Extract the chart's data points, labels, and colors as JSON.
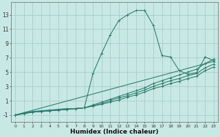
{
  "xlabel": "Humidex (Indice chaleur)",
  "xlim": [
    -0.5,
    23.5
  ],
  "ylim": [
    -2.0,
    14.8
  ],
  "yticks": [
    -1,
    1,
    3,
    5,
    7,
    9,
    11,
    13
  ],
  "xticks": [
    0,
    1,
    2,
    3,
    4,
    5,
    6,
    7,
    8,
    9,
    10,
    11,
    12,
    13,
    14,
    15,
    16,
    17,
    18,
    19,
    20,
    21,
    22,
    23
  ],
  "bg_color": "#c8e8e4",
  "line_color": "#2e7d6e",
  "grid_color": "#a8ccc8",
  "lines": [
    {
      "x": [
        0,
        1,
        2,
        3,
        4,
        5,
        6,
        7,
        8,
        9,
        10,
        11,
        12,
        13,
        14,
        15,
        16,
        17,
        18,
        19,
        20,
        21,
        22,
        23
      ],
      "y": [
        -1.0,
        -0.7,
        -0.5,
        -0.4,
        -0.3,
        -0.2,
        -0.1,
        -0.1,
        0.0,
        4.8,
        7.6,
        10.2,
        12.2,
        13.0,
        13.6,
        13.6,
        11.5,
        7.3,
        7.1,
        5.2,
        4.7,
        4.9,
        7.1,
        6.6
      ]
    },
    {
      "x": [
        0,
        1,
        2,
        3,
        4,
        5,
        6,
        7,
        8,
        9,
        10,
        11,
        12,
        13,
        14,
        15,
        16,
        17,
        18,
        19,
        20,
        21,
        22,
        23
      ],
      "y": [
        -1.0,
        -0.8,
        -0.6,
        -0.5,
        -0.4,
        -0.3,
        -0.2,
        -0.1,
        0.0,
        0.4,
        0.8,
        1.2,
        1.6,
        2.0,
        2.4,
        2.8,
        3.4,
        3.8,
        4.2,
        4.6,
        5.0,
        5.4,
        6.2,
        6.8
      ]
    },
    {
      "x": [
        0,
        1,
        2,
        3,
        4,
        5,
        6,
        7,
        8,
        9,
        10,
        11,
        12,
        13,
        14,
        15,
        16,
        17,
        18,
        19,
        20,
        21,
        22,
        23
      ],
      "y": [
        -1.0,
        -0.8,
        -0.6,
        -0.5,
        -0.4,
        -0.3,
        -0.2,
        -0.1,
        0.0,
        0.3,
        0.6,
        1.0,
        1.4,
        1.7,
        2.1,
        2.5,
        3.0,
        3.4,
        3.8,
        4.1,
        4.5,
        4.8,
        5.6,
        6.1
      ]
    },
    {
      "x": [
        0,
        1,
        2,
        3,
        4,
        5,
        6,
        7,
        8,
        9,
        10,
        11,
        12,
        13,
        14,
        15,
        16,
        17,
        18,
        19,
        20,
        21,
        22,
        23
      ],
      "y": [
        -1.0,
        -0.8,
        -0.6,
        -0.5,
        -0.4,
        -0.3,
        -0.2,
        -0.1,
        0.0,
        0.25,
        0.5,
        0.8,
        1.1,
        1.5,
        1.8,
        2.2,
        2.7,
        3.0,
        3.4,
        3.7,
        4.1,
        4.4,
        5.2,
        5.7
      ]
    },
    {
      "x": [
        0,
        23
      ],
      "y": [
        -1.0,
        6.5
      ]
    }
  ]
}
